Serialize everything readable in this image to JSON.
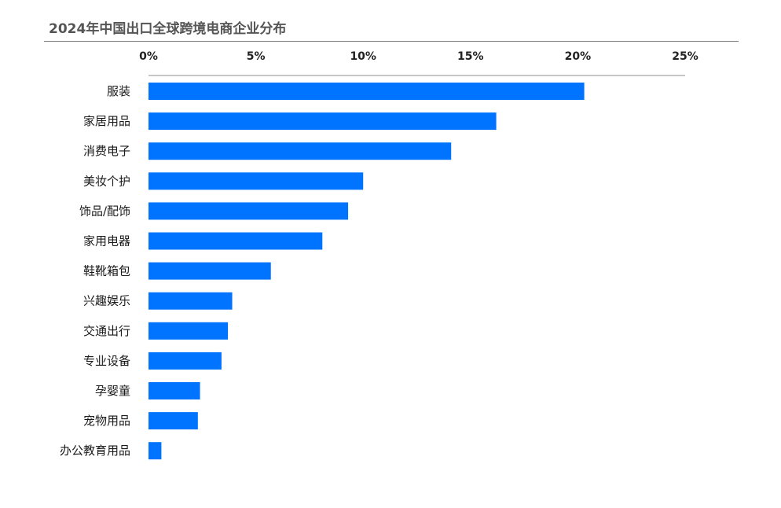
{
  "title": "2024年中国出口全球跨境电商企业分布",
  "chart_data": {
    "type": "bar",
    "orientation": "horizontal",
    "title": "2024年中国出口全球跨境电商企业分布",
    "xlabel": "",
    "ylabel": "",
    "xlim": [
      0,
      25
    ],
    "x_ticks": [
      "0%",
      "5%",
      "10%",
      "15%",
      "20%",
      "25%"
    ],
    "x_axis_position": "top",
    "grid": false,
    "legend": "none",
    "bar_color": "#0074FF",
    "categories": [
      "服装",
      "家居用品",
      "消费电子",
      "美妆个护",
      "饰品/配饰",
      "家用电器",
      "鞋靴箱包",
      "兴趣娱乐",
      "交通出行",
      "专业设备",
      "孕婴童",
      "宠物用品",
      "办公教育用品"
    ],
    "values": [
      20.3,
      16.2,
      14.1,
      10.0,
      9.3,
      8.1,
      5.7,
      3.9,
      3.7,
      3.4,
      2.4,
      2.3,
      0.6
    ]
  }
}
